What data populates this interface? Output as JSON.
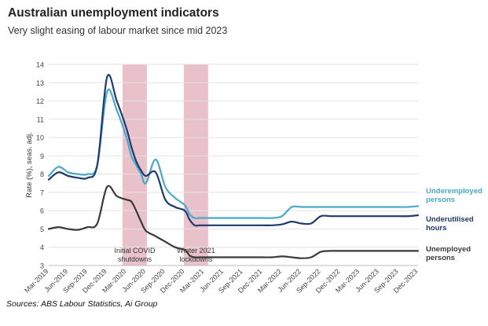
{
  "header": {
    "title": "Australian unemployment indicators",
    "subtitle": "Very slight easing of labour market since mid 2023"
  },
  "footer": {
    "source": "Sources: ABS Labour Statistics, Ai Group"
  },
  "chart_data": {
    "type": "line",
    "title": "Australian unemployment indicators",
    "subtitle": "Very slight easing of labour market since mid 2023",
    "xlabel": "",
    "ylabel": "Rate (%), seas. adj.",
    "ylim": [
      3,
      14
    ],
    "yticks": [
      3,
      4,
      5,
      6,
      7,
      8,
      9,
      10,
      11,
      12,
      13,
      14
    ],
    "grid": true,
    "x_tick_labels": [
      "Mar-2019",
      "Jun-2019",
      "Sep-2019",
      "Dec-2019",
      "Mar-2020",
      "Jun-2020",
      "Sep-2020",
      "Dec-2020",
      "Mar-2021",
      "Jun-2021",
      "Sep-2021",
      "Dec-2021",
      "Mar-2022",
      "Jun-2022",
      "Sep-2022",
      "Dec-2022",
      "Mar-2023",
      "Jun-2023",
      "Sep-2023",
      "Dec-2023"
    ],
    "shaded_periods": [
      {
        "label_lines": [
          "Initial COVID",
          "shutdowns"
        ],
        "start": 3.8,
        "end": 5.05,
        "color": "#e8c1cb"
      },
      {
        "label_lines": [
          "Winter 2021",
          "lockdowns"
        ],
        "start": 6.95,
        "end": 8.2,
        "color": "#e8c1cb"
      }
    ],
    "x": [
      0,
      0.5,
      1,
      1.5,
      2,
      2.5,
      3,
      3.5,
      4,
      4.25,
      4.5,
      4.75,
      5,
      5.5,
      6,
      6.5,
      7,
      7.25,
      7.5,
      7.75,
      8,
      8.5,
      9,
      9.5,
      10,
      10.5,
      11,
      11.5,
      12,
      12.5,
      13,
      13.5,
      14,
      14.5,
      15,
      15.5,
      16,
      16.5,
      17,
      17.5,
      18,
      18.5,
      19
    ],
    "series": [
      {
        "name": "Underemployed persons",
        "label_lines": [
          "Underemployed",
          "persons"
        ],
        "color": "#4aa8c8",
        "values": [
          7.9,
          8.4,
          8.1,
          8.0,
          8.0,
          8.5,
          12.5,
          11.5,
          10.0,
          9.0,
          8.5,
          8.0,
          7.5,
          8.8,
          7.3,
          6.7,
          6.3,
          5.8,
          5.6,
          5.6,
          5.6,
          5.6,
          5.6,
          5.6,
          5.6,
          5.6,
          5.6,
          5.6,
          5.7,
          6.2,
          6.2,
          6.2,
          6.2,
          6.2,
          6.2,
          6.2,
          6.2,
          6.2,
          6.2,
          6.2,
          6.2,
          6.2,
          6.25
        ]
      },
      {
        "name": "Underutilised hours",
        "label_lines": [
          "Underutilised",
          "hours"
        ],
        "color": "#1f3a6e",
        "values": [
          7.7,
          8.1,
          7.9,
          7.8,
          7.8,
          8.5,
          13.3,
          12.0,
          10.5,
          9.5,
          8.7,
          8.2,
          7.9,
          8.1,
          6.6,
          6.2,
          6.0,
          5.5,
          5.2,
          5.2,
          5.2,
          5.2,
          5.2,
          5.2,
          5.2,
          5.2,
          5.2,
          5.2,
          5.25,
          5.4,
          5.3,
          5.3,
          5.7,
          5.7,
          5.7,
          5.7,
          5.7,
          5.7,
          5.7,
          5.7,
          5.7,
          5.7,
          5.75
        ]
      },
      {
        "name": "Unemployed persons",
        "label_lines": [
          "Unemployed",
          "persons"
        ],
        "color": "#3a3a3a",
        "values": [
          5.0,
          5.1,
          5.0,
          4.95,
          5.1,
          5.3,
          7.3,
          6.8,
          6.6,
          6.5,
          6.0,
          5.4,
          4.9,
          4.6,
          4.3,
          4.0,
          3.85,
          3.55,
          3.45,
          3.45,
          3.45,
          3.45,
          3.45,
          3.45,
          3.45,
          3.45,
          3.45,
          3.45,
          3.5,
          3.45,
          3.4,
          3.45,
          3.75,
          3.8,
          3.8,
          3.8,
          3.8,
          3.8,
          3.8,
          3.8,
          3.8,
          3.8,
          3.8
        ]
      }
    ]
  }
}
